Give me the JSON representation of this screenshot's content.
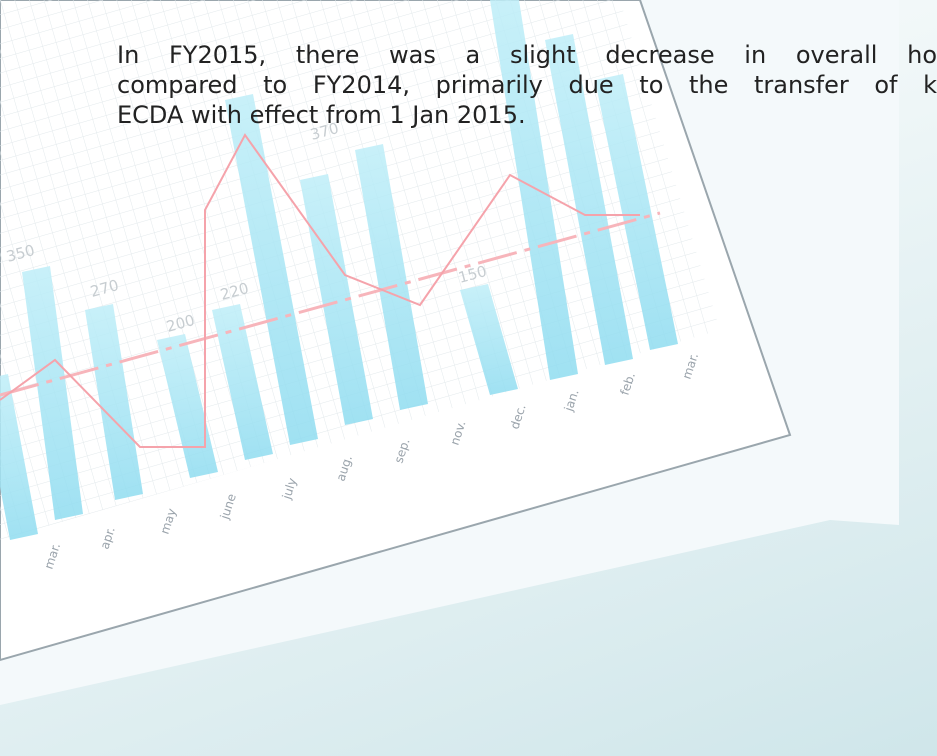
{
  "paragraph": {
    "lines": [
      "In FY2015, there was a slight decrease in overall ho",
      "compared to FY2014, primarily due to the transfer of k",
      "ECDA with effect from 1 Jan 2015."
    ]
  },
  "photo": {
    "value_labels": [
      "350",
      "270",
      "200",
      "220",
      "370",
      "150"
    ],
    "months": [
      "mar.",
      "apr.",
      "may",
      "june",
      "july",
      "aug.",
      "sep.",
      "nov.",
      "dec.",
      "jan.",
      "feb.",
      "mar."
    ]
  }
}
